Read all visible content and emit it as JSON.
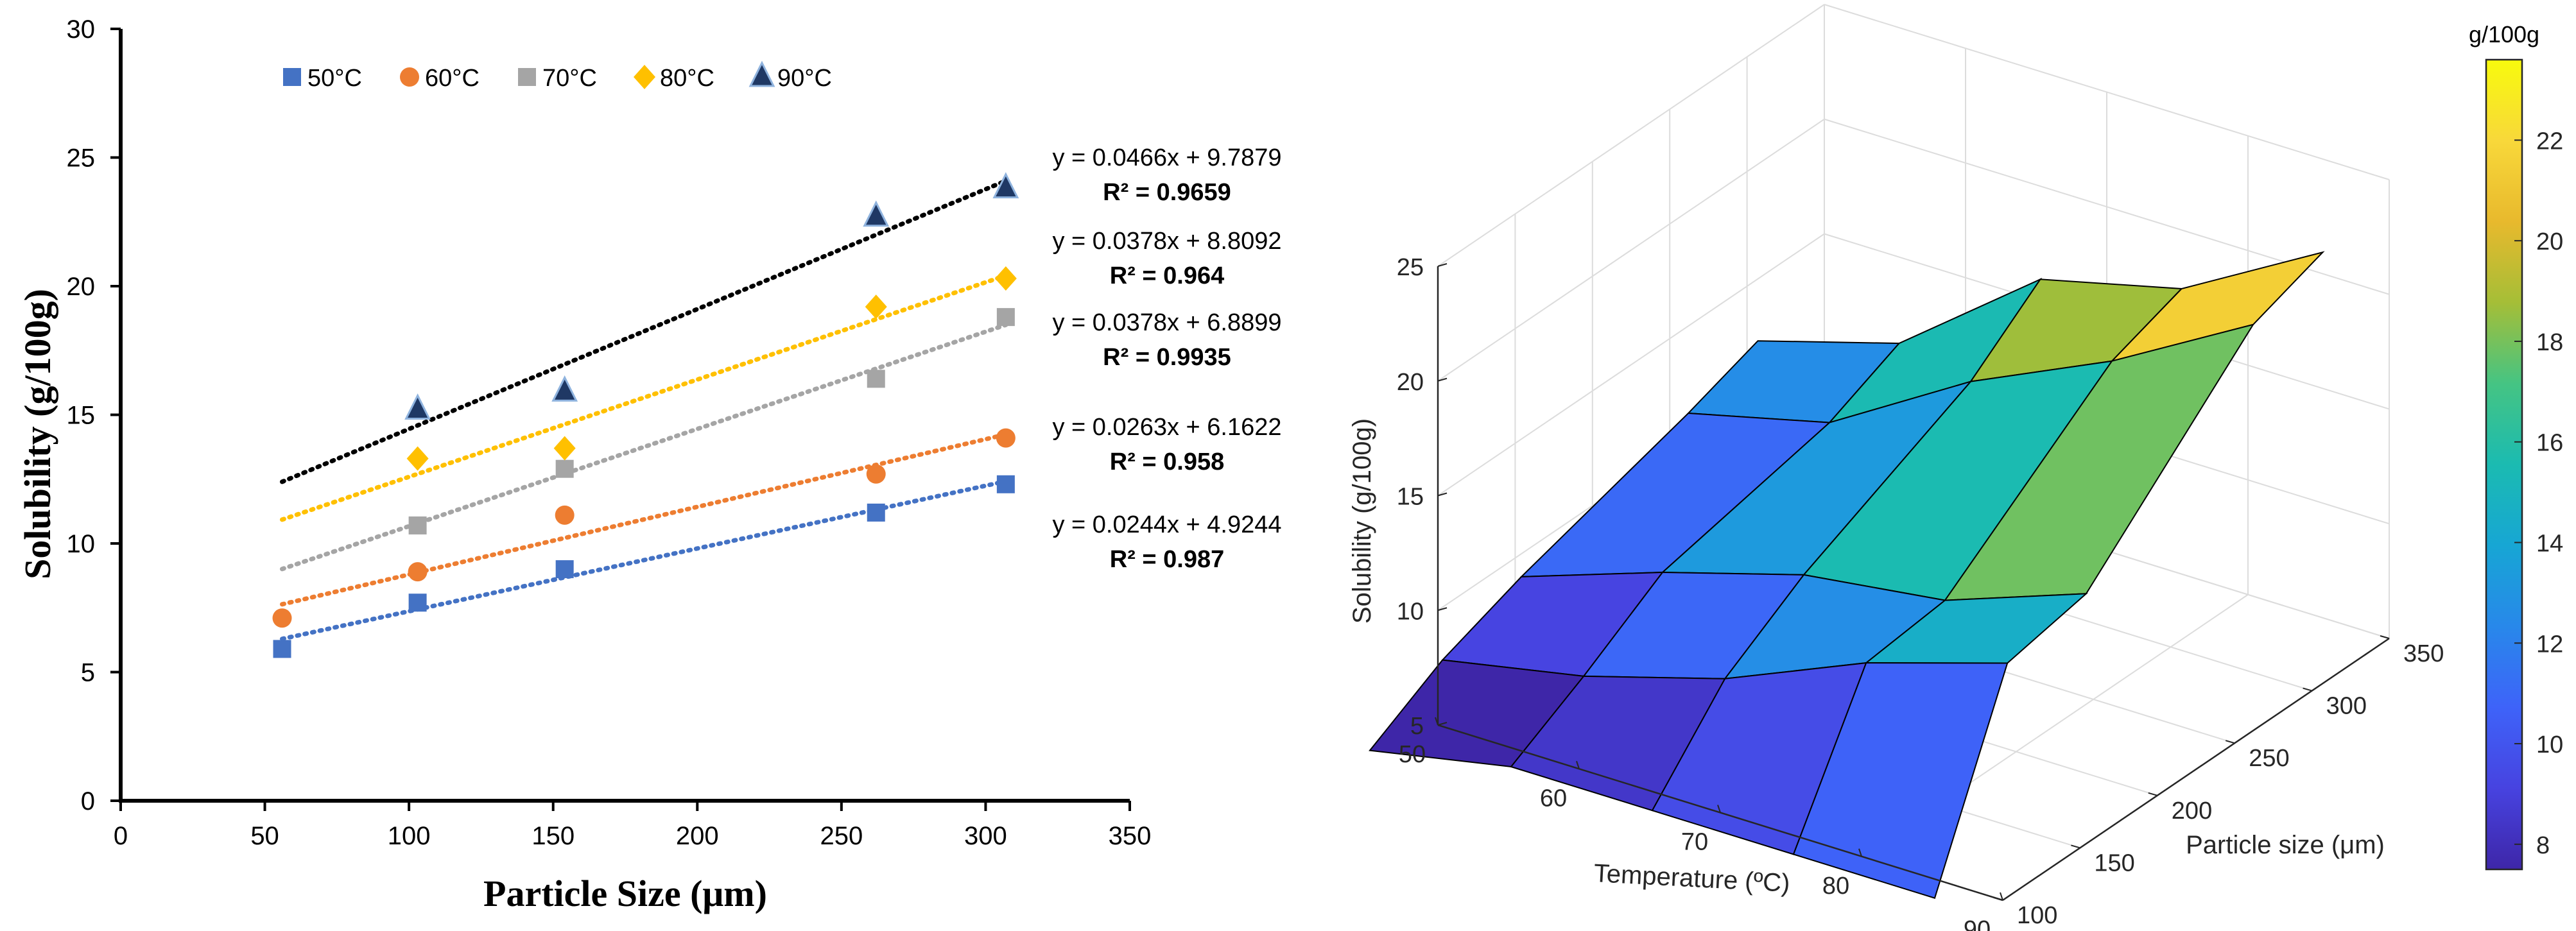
{
  "chart_data": [
    {
      "type": "scatter",
      "title": "",
      "xlabel": "Particle Size (μm)",
      "ylabel": "Solubility (g/100g)",
      "xlim": [
        0,
        350
      ],
      "ylim": [
        0,
        30
      ],
      "xticks": [
        0,
        50,
        100,
        150,
        200,
        250,
        300,
        350
      ],
      "yticks": [
        0,
        5,
        10,
        15,
        20,
        25,
        30
      ],
      "x": [
        56,
        103,
        154,
        262,
        307
      ],
      "series": [
        {
          "name": "50°C",
          "marker": "square",
          "color": "#4472C4",
          "values": [
            5.9,
            7.7,
            9.0,
            11.2,
            12.3
          ],
          "trendline": {
            "slope": 0.0244,
            "intercept": 4.9244,
            "equation": "y = 0.0244x + 4.9244",
            "r2": "R² = 0.987"
          }
        },
        {
          "name": "60°C",
          "marker": "circle",
          "color": "#ED7D31",
          "values": [
            7.1,
            8.9,
            11.1,
            12.7,
            14.1
          ],
          "trendline": {
            "slope": 0.0263,
            "intercept": 6.1622,
            "equation": "y = 0.0263x + 6.1622",
            "r2": "R² = 0.958"
          }
        },
        {
          "name": "70°C",
          "marker": "square",
          "color": "#A5A5A5",
          "values": [
            null,
            10.7,
            12.9,
            16.4,
            18.8
          ],
          "trendline": {
            "slope": 0.0378,
            "intercept": 6.8899,
            "equation": "y = 0.0378x + 6.8899",
            "r2": "R² = 0.9935"
          }
        },
        {
          "name": "80°C",
          "marker": "diamond",
          "color": "#FFC000",
          "values": [
            null,
            13.3,
            13.7,
            19.2,
            20.3
          ],
          "trendline": {
            "slope": 0.0378,
            "intercept": 8.8092,
            "equation": "y = 0.0378x + 8.8092",
            "r2": "R² = 0.964"
          }
        },
        {
          "name": "90°C",
          "marker": "triangle",
          "color": "#1F3864",
          "values": [
            null,
            15.2,
            15.9,
            22.7,
            23.8
          ],
          "trendline": {
            "slope": 0.0466,
            "intercept": 9.7879,
            "equation": "y = 0.0466x + 9.7879",
            "r2": "R² = 0.9659"
          }
        }
      ],
      "trendline_color_90": "#000000",
      "legend": "top"
    },
    {
      "type": "surface",
      "title": "",
      "xlabel": "Temperature (ºC)",
      "ylabel": "Particle size (μm)",
      "zlabel": "Solubility (g/100g)",
      "xticks": [
        50,
        60,
        70,
        80,
        90
      ],
      "yticks": [
        100,
        150,
        200,
        250,
        300,
        350
      ],
      "zticks": [
        5,
        10,
        15,
        20,
        25
      ],
      "xlim": [
        50,
        90
      ],
      "ylim": [
        100,
        350
      ],
      "zlim": [
        5,
        25
      ],
      "temperatures": [
        50,
        60,
        70,
        80,
        90
      ],
      "particle_sizes": [
        56,
        103,
        154,
        262,
        307
      ],
      "z": [
        [
          5.9,
          7.1,
          7.1,
          7.1,
          7.1
        ],
        [
          7.7,
          8.9,
          10.7,
          13.3,
          15.2
        ],
        [
          9.0,
          11.1,
          12.9,
          13.7,
          15.9
        ],
        [
          11.2,
          12.7,
          16.4,
          19.2,
          22.7
        ],
        [
          12.3,
          14.1,
          18.8,
          20.3,
          23.8
        ]
      ],
      "colorbar": {
        "title": "g/100g",
        "range": [
          7.5,
          23.6
        ],
        "ticks": [
          8,
          10,
          12,
          14,
          16,
          18,
          20,
          22
        ],
        "colors": [
          "#3E26A8",
          "#4743E0",
          "#3E63F9",
          "#2888EA",
          "#17A6D4",
          "#1BBBB1",
          "#45C483",
          "#A5BE37",
          "#E8B92D",
          "#F8D83A",
          "#F8FA0D"
        ]
      }
    }
  ]
}
